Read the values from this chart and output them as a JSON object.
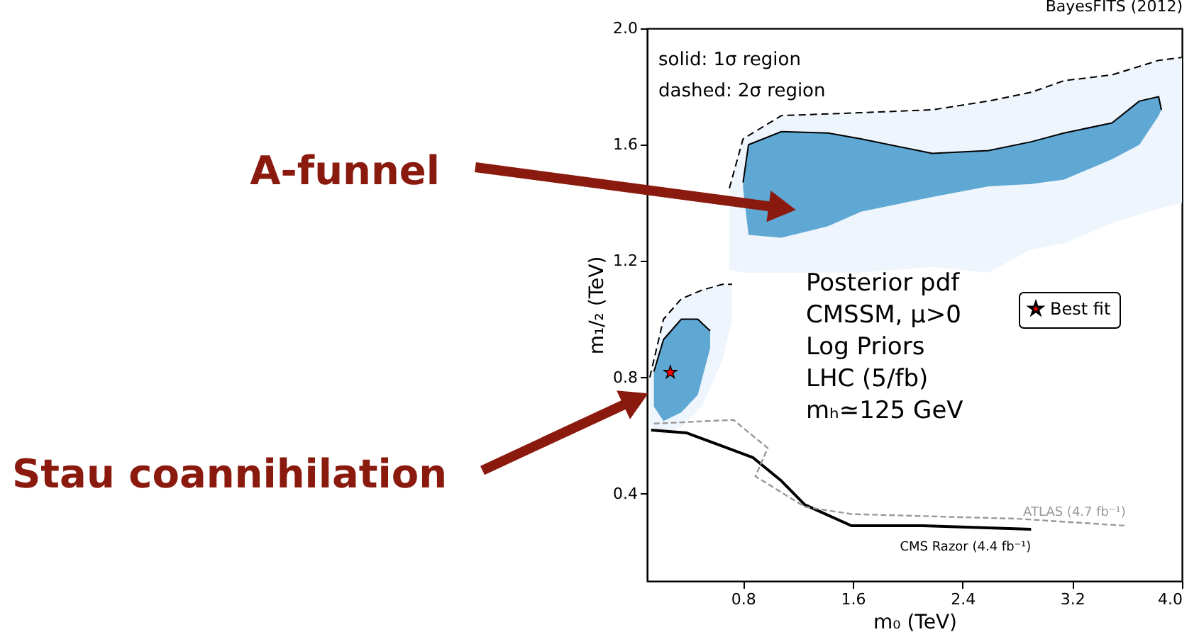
{
  "chart_data": {
    "type": "line",
    "title": "BayesFITS (2012)",
    "xlabel": "m₀ (TeV)",
    "ylabel": "m₁/₂ (TeV)",
    "xlim": [
      0.1,
      4.0
    ],
    "ylim": [
      0.1,
      2.0
    ],
    "xticks": [
      0.8,
      1.6,
      2.4,
      3.2,
      {
        "value": 4,
        "label": "4.0"
      }
    ],
    "yticks": [
      0.4,
      0.8,
      1.2,
      1.6,
      {
        "value": 2,
        "label": "2.0"
      }
    ],
    "grid": false,
    "legend": "right",
    "series": [
      {
        "type": "line",
        "color": "#000000",
        "line_style": "dashed",
        "x": [
          0.7,
          0.8,
          1.08,
          1.66,
          2.18,
          2.59,
          2.9,
          3.14,
          3.49,
          3.83,
          4.0
        ],
        "values": [
          1.45,
          1.62,
          1.7,
          1.71,
          1.72,
          1.75,
          1.78,
          1.82,
          1.84,
          1.89,
          1.9
        ],
        "upper": [
          1.45,
          1.62,
          1.7,
          1.71,
          1.72,
          1.75,
          1.78,
          1.82,
          1.84,
          1.89,
          1.9
        ],
        "lower": [
          1.17,
          1.16,
          1.16,
          1.16,
          1.18,
          1.16,
          1.24,
          1.26,
          1.33,
          1.38,
          1.4
        ]
      },
      {
        "type": "line",
        "color": "#000000",
        "line_style": "dashed",
        "x": [
          0.12,
          0.22,
          0.35,
          0.5,
          0.65,
          0.72
        ],
        "values": [
          0.8,
          1.0,
          1.07,
          1.1,
          1.12,
          1.12
        ],
        "upper": [
          0.8,
          1.0,
          1.07,
          1.1,
          1.12,
          1.12
        ],
        "lower": [
          0.64,
          0.6,
          0.63,
          0.7,
          0.86,
          1.0
        ]
      },
      {
        "type": "line",
        "color": "#000000",
        "line_style": "solid",
        "x": [
          0.8,
          0.84,
          1.08,
          1.42,
          1.66,
          2.18,
          2.59,
          2.9,
          3.14,
          3.49,
          3.69,
          3.83,
          3.85
        ],
        "values": [
          1.47,
          1.6,
          1.645,
          1.64,
          1.62,
          1.57,
          1.58,
          1.61,
          1.64,
          1.675,
          1.75,
          1.765,
          1.72
        ],
        "upper": [
          1.47,
          1.6,
          1.645,
          1.64,
          1.62,
          1.57,
          1.58,
          1.61,
          1.64,
          1.675,
          1.75,
          1.765,
          1.72
        ],
        "lower": [
          1.45,
          1.29,
          1.28,
          1.32,
          1.37,
          1.42,
          1.457,
          1.465,
          1.48,
          1.55,
          1.6,
          1.7,
          1.72
        ]
      },
      {
        "type": "line",
        "color": "#000000",
        "line_style": "solid",
        "x": [
          0.15,
          0.22,
          0.35,
          0.47,
          0.56
        ],
        "values": [
          0.82,
          0.93,
          1.0,
          1.0,
          0.96
        ],
        "upper": [
          0.82,
          0.93,
          1.0,
          1.0,
          0.96
        ],
        "lower": [
          0.7,
          0.65,
          0.68,
          0.74,
          0.9
        ]
      },
      {
        "name": "CMS Razor (4.4 fb⁻¹)",
        "color": "#000000",
        "line_style": "solid",
        "x": [
          0.13,
          0.39,
          0.87,
          1.08,
          1.25,
          1.59,
          2.11,
          2.9
        ],
        "values": [
          0.619,
          0.609,
          0.525,
          0.444,
          0.362,
          0.29,
          0.29,
          0.278
        ]
      },
      {
        "name": "ATLAS (4.7 fb⁻¹)",
        "color": "#999999",
        "line_style": "dashed",
        "x": [
          0.15,
          0.73,
          0.98,
          0.89,
          1.25,
          1.59,
          2.8,
          3.59
        ],
        "values": [
          0.641,
          0.654,
          0.557,
          0.46,
          0.355,
          0.33,
          0.314,
          0.29
        ]
      },
      {
        "type": "scatter",
        "name": "Best fit",
        "marker": "star",
        "color": "#ff0000",
        "x": [
          0.27
        ],
        "values": [
          0.817
        ]
      }
    ],
    "annotations": [
      "solid: 1σ region",
      "dashed: 2σ region",
      "Posterior pdf",
      "CMSSM, μ>0",
      "Log Priors",
      "LHC (5/fb)",
      "mₕ≃125 GeV",
      "A-funnel",
      "Stau coannihilation"
    ]
  }
}
